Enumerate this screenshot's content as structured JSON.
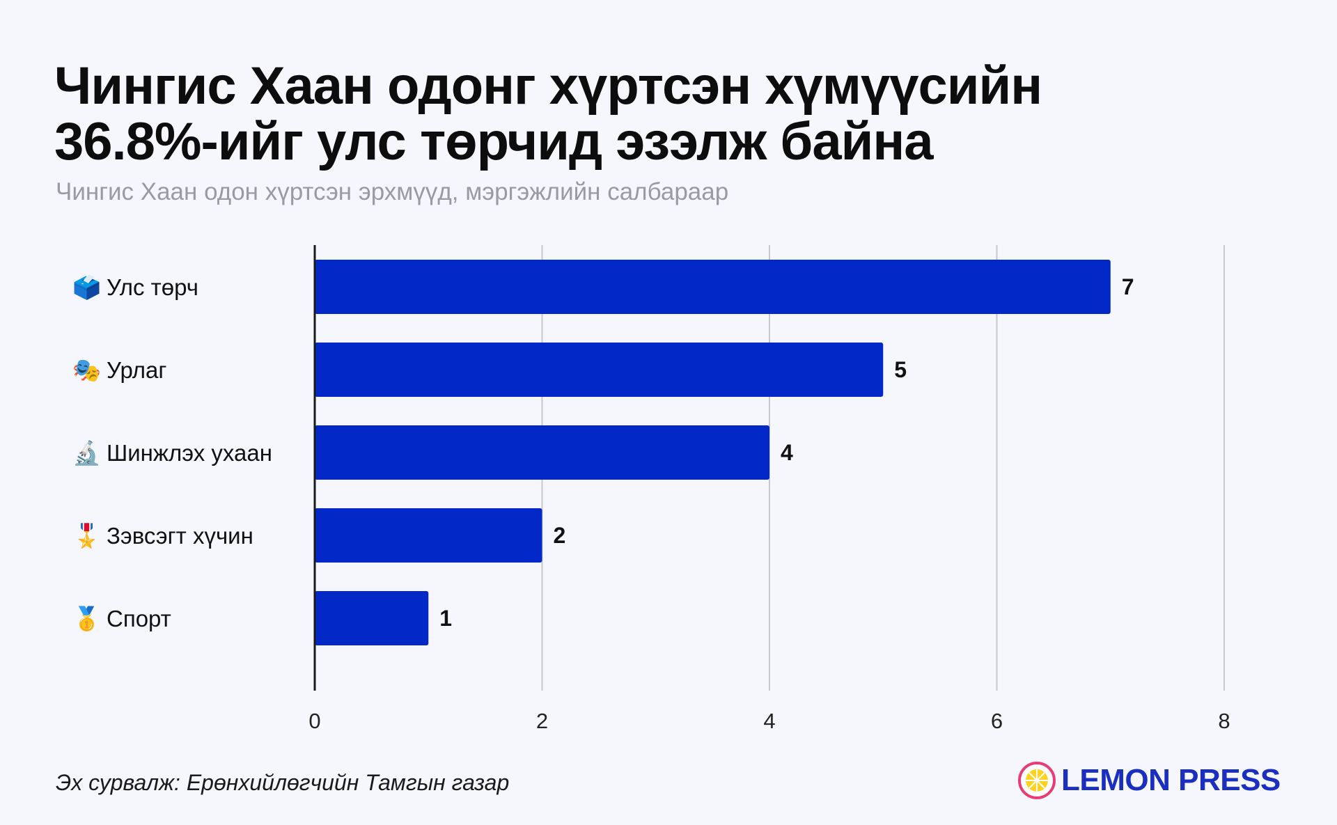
{
  "title": {
    "line1": "Чингис Хаан одонг хүртсэн хүмүүсийн",
    "line2": "36.8%-ийг улс төрчид эзэлж байна"
  },
  "subtitle": "Чингис Хаан одон хүртсэн эрхмүүд, мэргэжлийн салбараар",
  "chart_data": {
    "type": "bar",
    "orientation": "horizontal",
    "title": "Чингис Хаан одонг хүртсэн хүмүүсийн 36.8%-ийг улс төрчид эзэлж байна",
    "subtitle": "Чингис Хаан одон хүртсэн эрхмүүд, мэргэжлийн салбараар",
    "categories": [
      "Улс төрч",
      "Урлаг",
      "Шинжлэх ухаан",
      "Зэвсэгт хүчин",
      "Спорт"
    ],
    "icons": [
      "🗳️",
      "🎭",
      "🔬",
      "🎖️",
      "🥇"
    ],
    "icon_names": [
      "ballot-box-icon",
      "theater-masks-icon",
      "microscope-icon",
      "military-medal-icon",
      "gold-medal-icon"
    ],
    "values": [
      7,
      5,
      4,
      2,
      1
    ],
    "xlim": [
      0,
      8
    ],
    "xticks": [
      0,
      2,
      4,
      6,
      8
    ],
    "xlabel": "",
    "ylabel": "",
    "grid": true,
    "bar_color": "#0228c8",
    "grid_color": "#c8c8cc",
    "axis_color": "#1a1a1a"
  },
  "source": "Эх сурвалж: Ерөнхийлөгчийн Тамгын газар",
  "logo": {
    "text": "LEMON PRESS",
    "text_color": "#1b2fbf",
    "ring_color": "#e83d74",
    "lemon_color": "#ffd21f"
  }
}
